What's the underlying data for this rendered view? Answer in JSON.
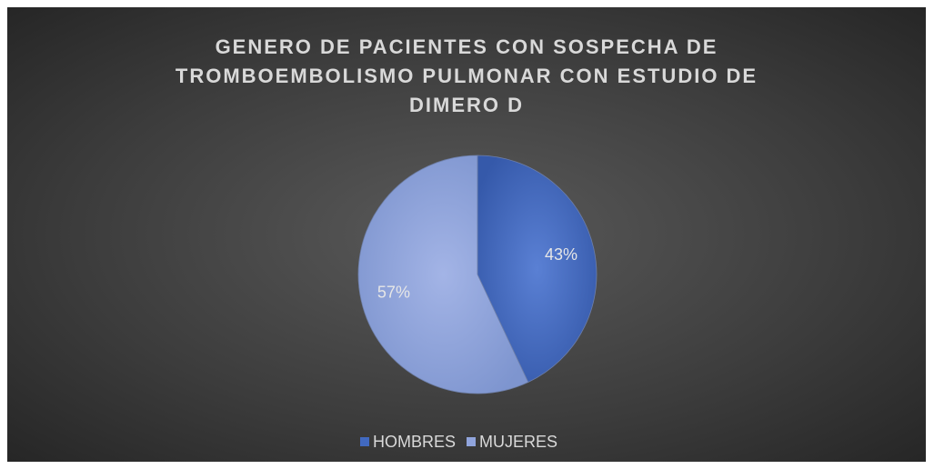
{
  "chart_data": {
    "type": "pie",
    "title": "GENERO DE PACIENTES CON SOSPECHA DE TROMBOEMBOLISMO PULMONAR CON ESTUDIO DE DIMERO D",
    "categories": [
      "HOMBRES",
      "MUJERES"
    ],
    "values": [
      43,
      57
    ],
    "value_labels": [
      "43%",
      "57%"
    ],
    "colors": [
      "#4169c0",
      "#90a4dc"
    ],
    "legend": "bottom"
  }
}
